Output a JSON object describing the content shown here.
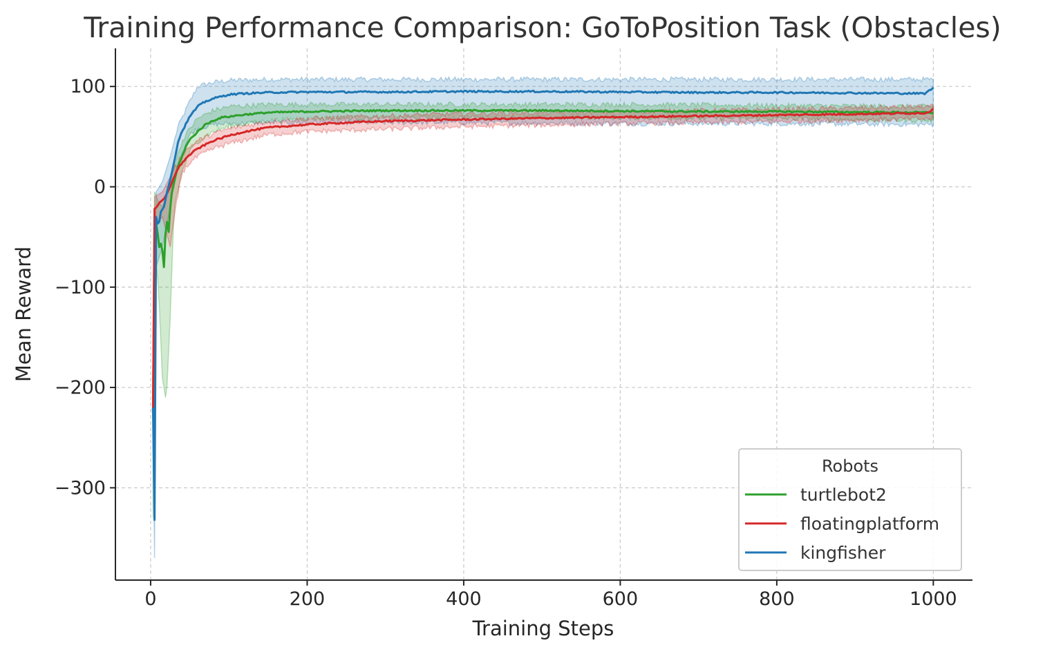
{
  "chart_data": {
    "type": "line",
    "title": "Training Performance Comparison: GoToPosition Task (Obstacles)",
    "xlabel": "Training Steps",
    "ylabel": "Mean Reward",
    "xlim": [
      -45,
      1050
    ],
    "ylim": [
      -392,
      138
    ],
    "xticks": [
      0,
      200,
      400,
      600,
      800,
      1000
    ],
    "yticks": [
      100,
      0,
      -100,
      -200,
      -300
    ],
    "xtick_labels": [
      "0",
      "200",
      "400",
      "600",
      "800",
      "1000"
    ],
    "ytick_labels": [
      "100",
      "0",
      "−100",
      "−200",
      "−300"
    ],
    "grid": true,
    "legend": {
      "title": "Robots",
      "position": "bottom-right"
    },
    "series": [
      {
        "name": "turtlebot2",
        "color": "#2ca02c",
        "mean": [
          [
            3,
            -225
          ],
          [
            5,
            -30
          ],
          [
            8,
            -40
          ],
          [
            11,
            -60
          ],
          [
            14,
            -55
          ],
          [
            17,
            -80
          ],
          [
            20,
            -30
          ],
          [
            23,
            -45
          ],
          [
            26,
            -10
          ],
          [
            30,
            5
          ],
          [
            35,
            20
          ],
          [
            40,
            30
          ],
          [
            45,
            40
          ],
          [
            50,
            47
          ],
          [
            60,
            55
          ],
          [
            70,
            62
          ],
          [
            80,
            66
          ],
          [
            90,
            69
          ],
          [
            100,
            70
          ],
          [
            120,
            72
          ],
          [
            150,
            74
          ],
          [
            200,
            75
          ],
          [
            300,
            76
          ],
          [
            400,
            76
          ],
          [
            500,
            76
          ],
          [
            600,
            75.5
          ],
          [
            700,
            75
          ],
          [
            800,
            75
          ],
          [
            900,
            74.5
          ],
          [
            1000,
            74
          ]
        ],
        "upper": [
          [
            3,
            -190
          ],
          [
            5,
            -5
          ],
          [
            10,
            -15
          ],
          [
            15,
            -20
          ],
          [
            20,
            -10
          ],
          [
            25,
            5
          ],
          [
            30,
            20
          ],
          [
            40,
            45
          ],
          [
            50,
            58
          ],
          [
            60,
            68
          ],
          [
            80,
            76
          ],
          [
            100,
            80
          ],
          [
            150,
            82
          ],
          [
            200,
            82
          ],
          [
            400,
            82
          ],
          [
            600,
            82
          ],
          [
            800,
            81
          ],
          [
            1000,
            80
          ]
        ],
        "lower": [
          [
            3,
            -330
          ],
          [
            5,
            -60
          ],
          [
            10,
            -100
          ],
          [
            15,
            -190
          ],
          [
            20,
            -215
          ],
          [
            25,
            -130
          ],
          [
            30,
            -20
          ],
          [
            40,
            15
          ],
          [
            50,
            35
          ],
          [
            60,
            45
          ],
          [
            80,
            55
          ],
          [
            100,
            60
          ],
          [
            150,
            66
          ],
          [
            200,
            68
          ],
          [
            400,
            69
          ],
          [
            600,
            69
          ],
          [
            800,
            68
          ],
          [
            1000,
            66
          ]
        ]
      },
      {
        "name": "floatingplatform",
        "color": "#d62728",
        "mean": [
          [
            3,
            -225
          ],
          [
            5,
            -22
          ],
          [
            8,
            -20
          ],
          [
            11,
            -16
          ],
          [
            14,
            -14
          ],
          [
            17,
            -12
          ],
          [
            20,
            -8
          ],
          [
            25,
            0
          ],
          [
            30,
            10
          ],
          [
            35,
            18
          ],
          [
            40,
            24
          ],
          [
            50,
            32
          ],
          [
            60,
            38
          ],
          [
            80,
            46
          ],
          [
            100,
            51
          ],
          [
            120,
            55
          ],
          [
            150,
            59
          ],
          [
            200,
            62
          ],
          [
            250,
            64
          ],
          [
            300,
            65.5
          ],
          [
            400,
            67
          ],
          [
            500,
            68.5
          ],
          [
            600,
            69.5
          ],
          [
            700,
            70.5
          ],
          [
            800,
            71.5
          ],
          [
            900,
            72.5
          ],
          [
            990,
            73.5
          ],
          [
            1000,
            77
          ]
        ],
        "upper": [
          [
            3,
            -200
          ],
          [
            5,
            -10
          ],
          [
            15,
            -5
          ],
          [
            25,
            10
          ],
          [
            30,
            18
          ],
          [
            40,
            32
          ],
          [
            50,
            40
          ],
          [
            60,
            46
          ],
          [
            80,
            53
          ],
          [
            100,
            58
          ],
          [
            150,
            65
          ],
          [
            200,
            68
          ],
          [
            400,
            73
          ],
          [
            600,
            75
          ],
          [
            800,
            77
          ],
          [
            1000,
            80
          ]
        ],
        "lower": [
          [
            3,
            -250
          ],
          [
            5,
            -40
          ],
          [
            15,
            -30
          ],
          [
            25,
            -60
          ],
          [
            30,
            -30
          ],
          [
            40,
            14
          ],
          [
            50,
            24
          ],
          [
            60,
            30
          ],
          [
            80,
            38
          ],
          [
            100,
            43
          ],
          [
            150,
            52
          ],
          [
            200,
            55
          ],
          [
            400,
            60
          ],
          [
            600,
            63
          ],
          [
            800,
            65
          ],
          [
            1000,
            68
          ]
        ]
      },
      {
        "name": "kingfisher",
        "color": "#1f77b4",
        "mean": [
          [
            3,
            -220
          ],
          [
            5,
            -332
          ],
          [
            7,
            -30
          ],
          [
            10,
            -40
          ],
          [
            13,
            -25
          ],
          [
            17,
            -20
          ],
          [
            21,
            -5
          ],
          [
            26,
            10
          ],
          [
            30,
            25
          ],
          [
            35,
            45
          ],
          [
            40,
            55
          ],
          [
            50,
            70
          ],
          [
            60,
            80
          ],
          [
            70,
            85
          ],
          [
            80,
            88
          ],
          [
            90,
            90
          ],
          [
            100,
            92
          ],
          [
            120,
            93
          ],
          [
            150,
            94
          ],
          [
            200,
            94.5
          ],
          [
            300,
            94.5
          ],
          [
            400,
            95
          ],
          [
            500,
            95
          ],
          [
            600,
            94.5
          ],
          [
            700,
            94
          ],
          [
            800,
            94
          ],
          [
            900,
            93.5
          ],
          [
            990,
            93
          ],
          [
            1000,
            99
          ]
        ],
        "upper": [
          [
            3,
            -200
          ],
          [
            5,
            -300
          ],
          [
            7,
            -5
          ],
          [
            15,
            5
          ],
          [
            25,
            30
          ],
          [
            35,
            60
          ],
          [
            50,
            85
          ],
          [
            60,
            100
          ],
          [
            80,
            104
          ],
          [
            100,
            106
          ],
          [
            150,
            107
          ],
          [
            200,
            107
          ],
          [
            400,
            107
          ],
          [
            600,
            107
          ],
          [
            800,
            107
          ],
          [
            1000,
            107
          ]
        ],
        "lower": [
          [
            3,
            -250
          ],
          [
            5,
            -370
          ],
          [
            7,
            -80
          ],
          [
            15,
            -60
          ],
          [
            25,
            -20
          ],
          [
            35,
            25
          ],
          [
            50,
            52
          ],
          [
            60,
            58
          ],
          [
            80,
            62
          ],
          [
            100,
            63
          ],
          [
            150,
            64
          ],
          [
            200,
            64
          ],
          [
            400,
            64
          ],
          [
            600,
            63
          ],
          [
            800,
            63
          ],
          [
            1000,
            62
          ]
        ]
      }
    ]
  }
}
